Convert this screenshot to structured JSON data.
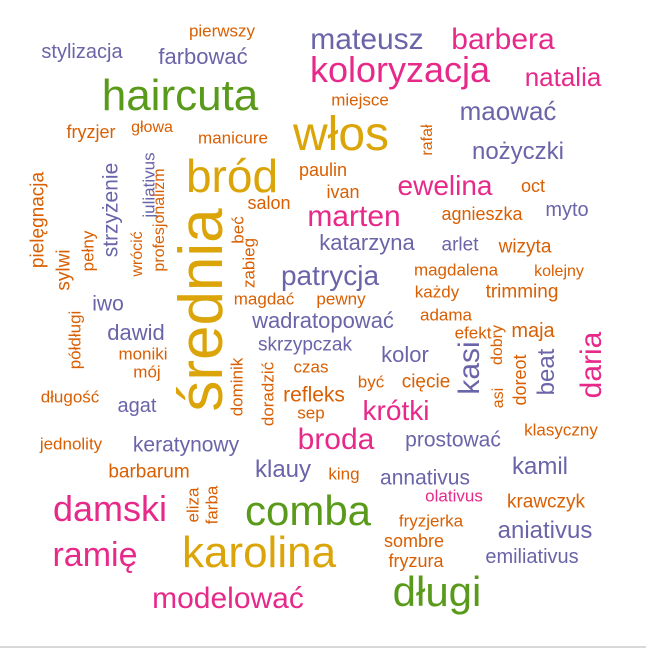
{
  "colors": {
    "orange": "#d95f02",
    "purple": "#6a64a8",
    "pink": "#e7298a",
    "green": "#5a9a1a",
    "gold": "#dba50a"
  },
  "words": [
    {
      "text": "pierwszy",
      "color": "orange"
    },
    {
      "text": "stylizacja",
      "color": "purple"
    },
    {
      "text": "farbować",
      "color": "purple"
    },
    {
      "text": "mateusz",
      "color": "purple"
    },
    {
      "text": "barbera",
      "color": "pink"
    },
    {
      "text": "koloryzacja",
      "color": "pink"
    },
    {
      "text": "natalia",
      "color": "pink"
    },
    {
      "text": "haircuta",
      "color": "green"
    },
    {
      "text": "miejsce",
      "color": "orange"
    },
    {
      "text": "maować",
      "color": "purple"
    },
    {
      "text": "fryzjer",
      "color": "orange"
    },
    {
      "text": "głowa",
      "color": "orange"
    },
    {
      "text": "manicure",
      "color": "orange"
    },
    {
      "text": "włos",
      "color": "gold"
    },
    {
      "text": "rafał",
      "color": "orange"
    },
    {
      "text": "nożyczki",
      "color": "purple"
    },
    {
      "text": "bród",
      "color": "gold"
    },
    {
      "text": "paulin",
      "color": "orange"
    },
    {
      "text": "ewelina",
      "color": "pink"
    },
    {
      "text": "oct",
      "color": "orange"
    },
    {
      "text": "pielęgnacja",
      "color": "orange"
    },
    {
      "text": "strzyżenie",
      "color": "purple"
    },
    {
      "text": "wrócić",
      "color": "orange"
    },
    {
      "text": "juliativus",
      "color": "purple"
    },
    {
      "text": "profesjonalizm",
      "color": "orange"
    },
    {
      "text": "ivan",
      "color": "orange"
    },
    {
      "text": "salon",
      "color": "orange"
    },
    {
      "text": "marten",
      "color": "pink"
    },
    {
      "text": "agnieszka",
      "color": "orange"
    },
    {
      "text": "myto",
      "color": "purple"
    },
    {
      "text": "średnia",
      "color": "gold"
    },
    {
      "text": "beć",
      "color": "orange"
    },
    {
      "text": "zabieg",
      "color": "orange"
    },
    {
      "text": "katarzyna",
      "color": "purple"
    },
    {
      "text": "arlet",
      "color": "purple"
    },
    {
      "text": "wizyta",
      "color": "orange"
    },
    {
      "text": "sylwi",
      "color": "orange"
    },
    {
      "text": "pełny",
      "color": "orange"
    },
    {
      "text": "patrycja",
      "color": "purple"
    },
    {
      "text": "magdalena",
      "color": "orange"
    },
    {
      "text": "kolejny",
      "color": "orange"
    },
    {
      "text": "każdy",
      "color": "orange"
    },
    {
      "text": "trimming",
      "color": "orange"
    },
    {
      "text": "iwo",
      "color": "purple"
    },
    {
      "text": "magdać",
      "color": "orange"
    },
    {
      "text": "pewny",
      "color": "orange"
    },
    {
      "text": "adama",
      "color": "orange"
    },
    {
      "text": "półdługi",
      "color": "orange"
    },
    {
      "text": "dawid",
      "color": "purple"
    },
    {
      "text": "wadratopować",
      "color": "purple"
    },
    {
      "text": "efekt",
      "color": "orange"
    },
    {
      "text": "maja",
      "color": "orange"
    },
    {
      "text": "daria",
      "color": "pink"
    },
    {
      "text": "moniki",
      "color": "orange"
    },
    {
      "text": "skrzypczak",
      "color": "purple"
    },
    {
      "text": "kolor",
      "color": "purple"
    },
    {
      "text": "kasi",
      "color": "purple"
    },
    {
      "text": "dobry",
      "color": "orange"
    },
    {
      "text": "mój",
      "color": "orange"
    },
    {
      "text": "dominik",
      "color": "orange"
    },
    {
      "text": "doradzić",
      "color": "orange"
    },
    {
      "text": "czas",
      "color": "orange"
    },
    {
      "text": "doreot",
      "color": "orange"
    },
    {
      "text": "beat",
      "color": "purple"
    },
    {
      "text": "długość",
      "color": "orange"
    },
    {
      "text": "agat",
      "color": "purple"
    },
    {
      "text": "refleks",
      "color": "orange"
    },
    {
      "text": "być",
      "color": "orange"
    },
    {
      "text": "cięcie",
      "color": "orange"
    },
    {
      "text": "asi",
      "color": "orange"
    },
    {
      "text": "sep",
      "color": "orange"
    },
    {
      "text": "krótki",
      "color": "pink"
    },
    {
      "text": "jednolity",
      "color": "orange"
    },
    {
      "text": "keratynowy",
      "color": "purple"
    },
    {
      "text": "broda",
      "color": "pink"
    },
    {
      "text": "prostować",
      "color": "purple"
    },
    {
      "text": "klasyczny",
      "color": "orange"
    },
    {
      "text": "barbarum",
      "color": "orange"
    },
    {
      "text": "klauy",
      "color": "purple"
    },
    {
      "text": "king",
      "color": "orange"
    },
    {
      "text": "annativus",
      "color": "purple"
    },
    {
      "text": "kamil",
      "color": "purple"
    },
    {
      "text": "damski",
      "color": "pink"
    },
    {
      "text": "eliza",
      "color": "orange"
    },
    {
      "text": "farba",
      "color": "orange"
    },
    {
      "text": "comba",
      "color": "green"
    },
    {
      "text": "olativus",
      "color": "pink"
    },
    {
      "text": "krawczyk",
      "color": "orange"
    },
    {
      "text": "fryzjerka",
      "color": "orange"
    },
    {
      "text": "aniativus",
      "color": "purple"
    },
    {
      "text": "ramię",
      "color": "pink"
    },
    {
      "text": "karolina",
      "color": "gold"
    },
    {
      "text": "sombre",
      "color": "orange"
    },
    {
      "text": "emiliativus",
      "color": "purple"
    },
    {
      "text": "fryzura",
      "color": "orange"
    },
    {
      "text": "długi",
      "color": "green"
    },
    {
      "text": "modelować",
      "color": "pink"
    }
  ]
}
